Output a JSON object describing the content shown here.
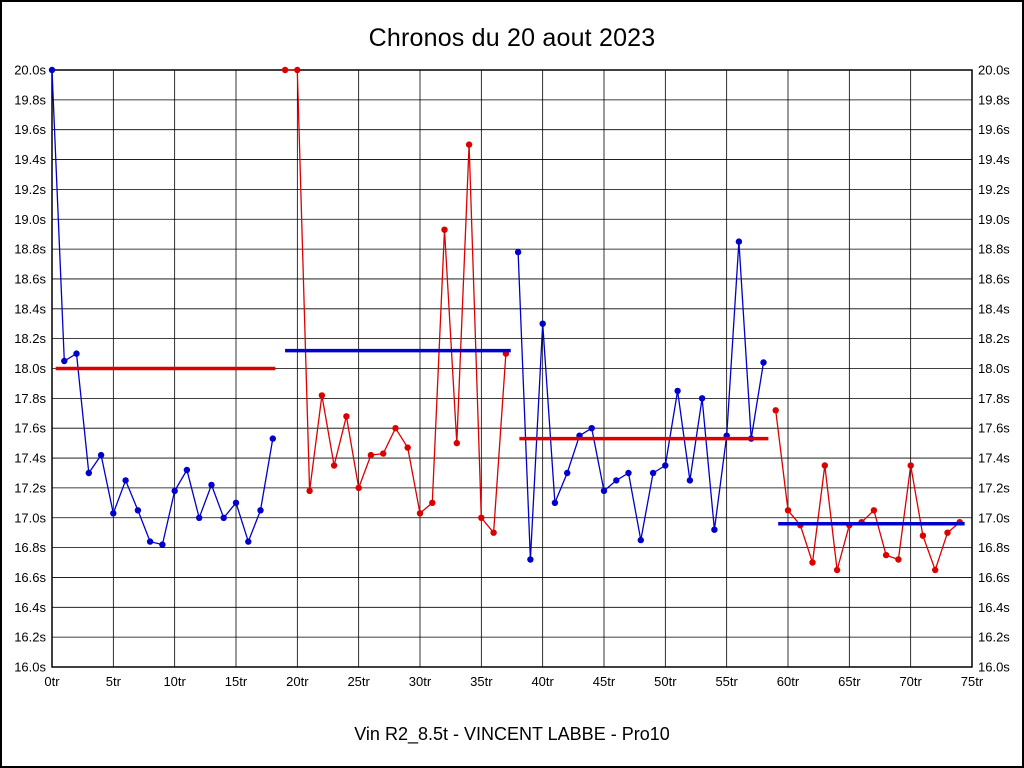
{
  "page": {
    "title": "Chronos du 20 aout 2023",
    "footer": "Vin R2_8.5t - VINCENT LABBE - Pro10"
  },
  "chart_data": {
    "type": "line",
    "title": "Chronos du 20 aout 2023",
    "subtitle": "Vin R2_8.5t - VINCENT LABBE - Pro10",
    "x_unit": "tr",
    "y_unit": "s",
    "xlim": [
      0,
      75
    ],
    "ylim": [
      16.0,
      20.0
    ],
    "x_tick_step": 5,
    "y_tick_step": 0.2,
    "grid": true,
    "legend": "none",
    "colors": {
      "blue": "#0000cc",
      "red": "#dd0000"
    },
    "series": [
      {
        "name": "stint-1-blue",
        "color": "blue",
        "points": [
          [
            0,
            20.0
          ],
          [
            1,
            18.05
          ],
          [
            2,
            18.1
          ],
          [
            3,
            17.3
          ],
          [
            4,
            17.42
          ],
          [
            5,
            17.03
          ],
          [
            6,
            17.25
          ],
          [
            7,
            17.05
          ],
          [
            8,
            16.84
          ],
          [
            9,
            16.82
          ],
          [
            10,
            17.18
          ],
          [
            11,
            17.32
          ],
          [
            12,
            17.0
          ],
          [
            13,
            17.22
          ],
          [
            14,
            17.0
          ],
          [
            15,
            17.1
          ],
          [
            16,
            16.84
          ],
          [
            17,
            17.05
          ],
          [
            18,
            17.53
          ]
        ]
      },
      {
        "name": "stint-2-red",
        "color": "red",
        "points": [
          [
            19,
            20.0
          ],
          [
            20,
            20.0
          ],
          [
            21,
            17.18
          ],
          [
            22,
            17.82
          ],
          [
            23,
            17.35
          ],
          [
            24,
            17.68
          ],
          [
            25,
            17.2
          ],
          [
            26,
            17.42
          ],
          [
            27,
            17.43
          ],
          [
            28,
            17.6
          ],
          [
            29,
            17.47
          ],
          [
            30,
            17.03
          ],
          [
            31,
            17.1
          ],
          [
            32,
            18.93
          ],
          [
            33,
            17.5
          ],
          [
            34,
            19.5
          ],
          [
            35,
            17.0
          ],
          [
            36,
            16.9
          ],
          [
            37,
            18.1
          ]
        ]
      },
      {
        "name": "stint-3-blue",
        "color": "blue",
        "points": [
          [
            38,
            18.78
          ],
          [
            39,
            16.72
          ],
          [
            40,
            18.3
          ],
          [
            41,
            17.1
          ],
          [
            42,
            17.3
          ],
          [
            43,
            17.55
          ],
          [
            44,
            17.6
          ],
          [
            45,
            17.18
          ],
          [
            46,
            17.25
          ],
          [
            47,
            17.3
          ],
          [
            48,
            16.85
          ],
          [
            49,
            17.3
          ],
          [
            50,
            17.35
          ],
          [
            51,
            17.85
          ],
          [
            52,
            17.25
          ],
          [
            53,
            17.8
          ],
          [
            54,
            16.92
          ],
          [
            55,
            17.55
          ],
          [
            56,
            18.85
          ],
          [
            57,
            17.53
          ],
          [
            58,
            18.04
          ]
        ]
      },
      {
        "name": "stint-4-red",
        "color": "red",
        "points": [
          [
            59,
            17.72
          ],
          [
            60,
            17.05
          ],
          [
            61,
            16.95
          ],
          [
            62,
            16.7
          ],
          [
            63,
            17.35
          ],
          [
            64,
            16.65
          ],
          [
            65,
            16.95
          ],
          [
            66,
            16.97
          ],
          [
            67,
            17.05
          ],
          [
            68,
            16.75
          ],
          [
            69,
            16.72
          ],
          [
            70,
            17.35
          ],
          [
            71,
            16.88
          ],
          [
            72,
            16.65
          ],
          [
            73,
            16.9
          ],
          [
            74,
            16.97
          ]
        ]
      }
    ],
    "average_lines": [
      {
        "name": "stint-1-average-line",
        "color": "red",
        "value": 18.0,
        "from": 0.3,
        "to": 18.2
      },
      {
        "name": "stint-2-average-line",
        "color": "blue",
        "value": 18.12,
        "from": 19.0,
        "to": 37.4
      },
      {
        "name": "stint-3-average-line",
        "color": "red",
        "value": 17.53,
        "from": 38.1,
        "to": 58.4
      },
      {
        "name": "stint-4-average-line",
        "color": "blue",
        "value": 16.96,
        "from": 59.2,
        "to": 74.4
      }
    ]
  }
}
